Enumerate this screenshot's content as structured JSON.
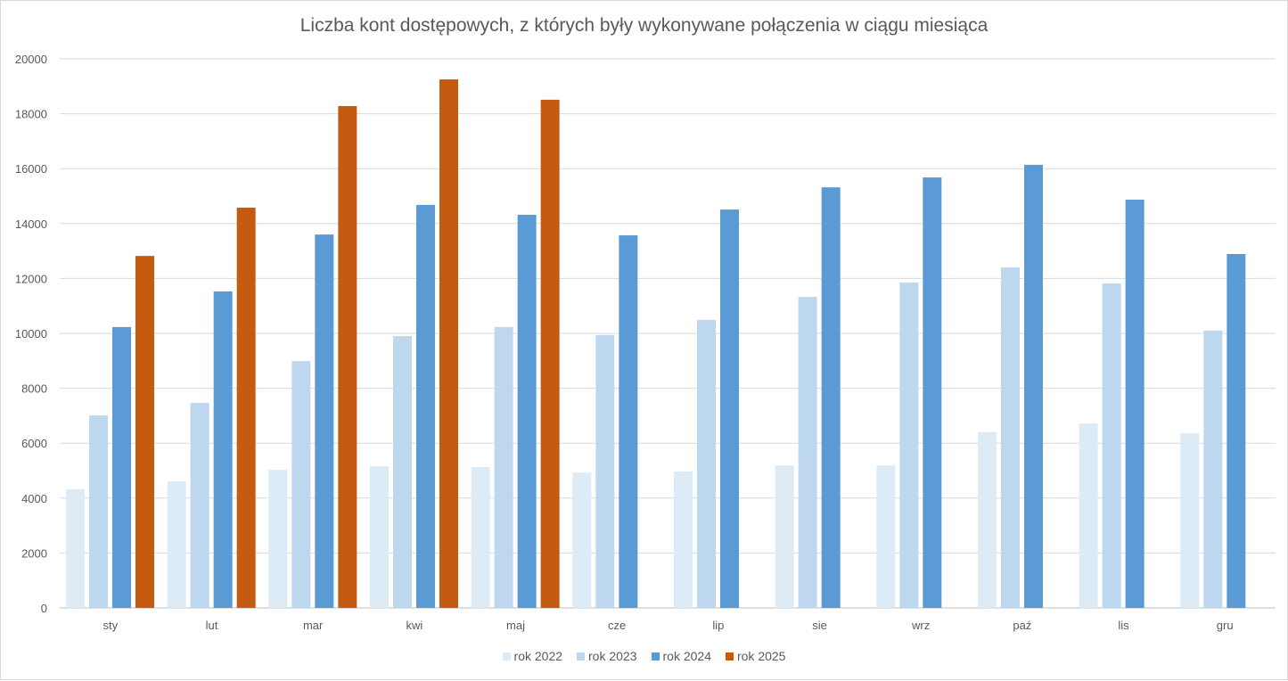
{
  "chart_data": {
    "type": "bar",
    "title": "Liczba kont dostępowych, z których były wykonywane połączenia w ciągu miesiąca",
    "xlabel": "",
    "ylabel": "",
    "ylim": [
      0,
      20000
    ],
    "yticks": [
      0,
      2000,
      4000,
      6000,
      8000,
      10000,
      12000,
      14000,
      16000,
      18000,
      20000
    ],
    "grid": true,
    "legend_position": "bottom",
    "categories": [
      "sty",
      "lut",
      "mar",
      "kwi",
      "maj",
      "cze",
      "lip",
      "sie",
      "wrz",
      "paź",
      "lis",
      "gru"
    ],
    "series": [
      {
        "name": "rok 2022",
        "color": "#DDEBF7",
        "values": [
          4320,
          4610,
          5030,
          5160,
          5130,
          4930,
          4970,
          5190,
          5190,
          6400,
          6720,
          6360
        ]
      },
      {
        "name": "rok 2023",
        "color": "#BDD7EE",
        "values": [
          7010,
          7470,
          8990,
          9900,
          10230,
          9940,
          10490,
          11330,
          11850,
          12400,
          11820,
          10100
        ]
      },
      {
        "name": "rok 2024",
        "color": "#5B9BD5",
        "values": [
          10230,
          11530,
          13600,
          14680,
          14320,
          13570,
          14510,
          15320,
          15680,
          16140,
          14870,
          12890
        ]
      },
      {
        "name": "rok 2025",
        "color": "#C55A11",
        "values": [
          12820,
          14580,
          18280,
          19250,
          18510,
          null,
          null,
          null,
          null,
          null,
          null,
          null
        ]
      }
    ]
  }
}
